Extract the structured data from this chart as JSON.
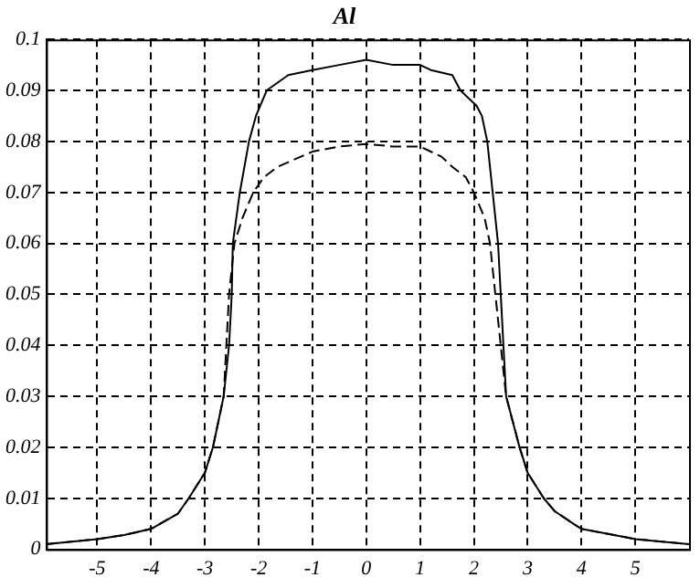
{
  "chart_data": {
    "type": "line",
    "title": "Al",
    "xlim": [
      -5.95,
      6
    ],
    "xticks": [
      -5,
      -4,
      -3,
      -2,
      -1,
      0,
      1,
      2,
      3,
      4,
      5
    ],
    "ylim": [
      0,
      0.1
    ],
    "yticks": [
      0,
      0.01,
      0.02,
      0.03,
      0.04,
      0.05,
      0.06,
      0.07,
      0.08,
      0.09,
      0.1
    ],
    "grid": true,
    "legend": false,
    "marker": "none",
    "series": [
      {
        "color": "#000000",
        "line_style": "solid",
        "x": [
          -5.95,
          -5,
          -4.5,
          -4,
          -3.5,
          -3.3,
          -3,
          -2.85,
          -2.65,
          -2.55,
          -2.5,
          -2.48,
          -2.35,
          -2.18,
          -2.05,
          -1.85,
          -1.45,
          -1,
          -0.5,
          0,
          0.5,
          1,
          1.2,
          1.6,
          1.75,
          2.05,
          2.15,
          2.25,
          2.35,
          2.45,
          2.5,
          2.6,
          2.85,
          3,
          3.3,
          3.5,
          3.85,
          4,
          4.5,
          5,
          6
        ],
        "values": [
          0.001,
          0.002,
          0.0028,
          0.004,
          0.007,
          0.01,
          0.015,
          0.02,
          0.03,
          0.04,
          0.05,
          0.06,
          0.07,
          0.08,
          0.085,
          0.09,
          0.093,
          0.094,
          0.095,
          0.096,
          0.095,
          0.095,
          0.094,
          0.093,
          0.09,
          0.087,
          0.085,
          0.08,
          0.07,
          0.06,
          0.05,
          0.03,
          0.02,
          0.015,
          0.01,
          0.0075,
          0.005,
          0.004,
          0.003,
          0.002,
          0.001
        ]
      },
      {
        "color": "#000000",
        "line_style": "dashed",
        "x": [
          -5.95,
          -5,
          -4.5,
          -4,
          -3.5,
          -3.3,
          -3,
          -2.85,
          -2.65,
          -2.55,
          -2.45,
          -2.3,
          -2.1,
          -1.9,
          -1.65,
          -1,
          -0.5,
          0,
          0.5,
          1,
          1.4,
          1.6,
          1.85,
          2,
          2.2,
          2.3,
          2.4,
          2.5,
          2.6,
          2.85,
          3,
          3.3,
          3.5,
          3.85,
          4,
          4.5,
          5,
          6
        ],
        "values": [
          0.001,
          0.002,
          0.0028,
          0.004,
          0.007,
          0.01,
          0.015,
          0.02,
          0.03,
          0.05,
          0.06,
          0.065,
          0.07,
          0.073,
          0.075,
          0.078,
          0.079,
          0.0795,
          0.079,
          0.079,
          0.077,
          0.075,
          0.073,
          0.07,
          0.065,
          0.06,
          0.05,
          0.04,
          0.03,
          0.02,
          0.015,
          0.01,
          0.0075,
          0.005,
          0.004,
          0.003,
          0.002,
          0.001
        ]
      }
    ]
  }
}
